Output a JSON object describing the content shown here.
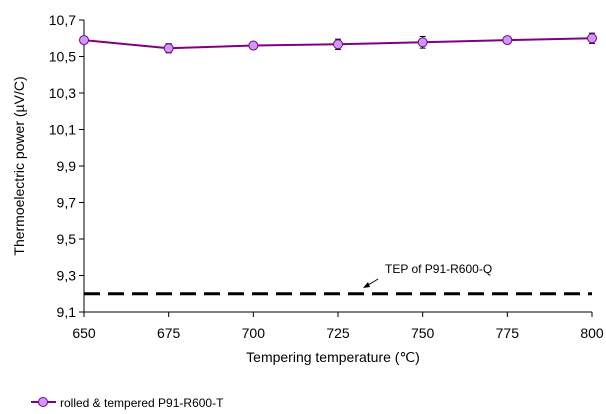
{
  "chart_data": {
    "type": "line",
    "title": "",
    "xlabel": "Tempering temperature (℃)",
    "ylabel": "Thermoelectric power (µV/C)",
    "xlim": [
      650,
      800
    ],
    "ylim": [
      9.1,
      10.7
    ],
    "x_ticks": [
      "650",
      "675",
      "700",
      "725",
      "750",
      "775",
      "800"
    ],
    "y_ticks": [
      "9,1",
      "9,3",
      "9,5",
      "9,7",
      "9,9",
      "10,1",
      "10,3",
      "10,5",
      "10,7"
    ],
    "grid": false,
    "legend_position": "bottom-left",
    "series": [
      {
        "name": "rolled & tempered P91-R600-T",
        "color": "#800080",
        "marker_fill": "#cc99ff",
        "marker": "circle",
        "x": [
          650,
          675,
          700,
          725,
          750,
          775,
          800
        ],
        "y": [
          10.59,
          10.545,
          10.56,
          10.567,
          10.578,
          10.59,
          10.6
        ],
        "error": [
          0.015,
          0.025,
          0.012,
          0.028,
          0.032,
          0.01,
          0.028
        ]
      }
    ],
    "reference_line": {
      "y": 9.2,
      "style": "dashed",
      "color": "#000000",
      "label": "TEP of P91-R600-Q"
    }
  }
}
